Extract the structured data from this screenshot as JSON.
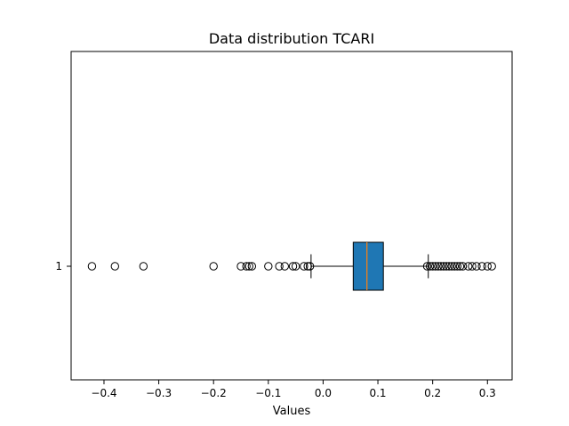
{
  "chart_data": {
    "type": "boxplot",
    "orientation": "horizontal",
    "title": "Data distribution TCARI",
    "xlabel": "Values",
    "ylabel": "",
    "xlim": [
      -0.46,
      0.345
    ],
    "x_ticks": [
      {
        "value": -0.4,
        "label": "−0.4"
      },
      {
        "value": -0.3,
        "label": "−0.3"
      },
      {
        "value": -0.2,
        "label": "−0.2"
      },
      {
        "value": -0.1,
        "label": "−0.1"
      },
      {
        "value": 0.0,
        "label": "0.0"
      },
      {
        "value": 0.1,
        "label": "0.1"
      },
      {
        "value": 0.2,
        "label": "0.2"
      },
      {
        "value": 0.3,
        "label": "0.3"
      }
    ],
    "y_ticks": [
      {
        "value": 1,
        "label": "1"
      }
    ],
    "grid": false,
    "legend": "none",
    "colors": {
      "box_fill": "#1f77b4",
      "median": "#ff7f0e",
      "line": "#000000"
    },
    "boxes": [
      {
        "category": "1",
        "whisker_low": -0.022,
        "q1": 0.055,
        "median": 0.08,
        "q3": 0.11,
        "whisker_high": 0.192,
        "outliers_low": [
          -0.422,
          -0.38,
          -0.328,
          -0.2,
          -0.15,
          -0.14,
          -0.135,
          -0.13,
          -0.1,
          -0.08,
          -0.07,
          -0.055,
          -0.05,
          -0.035,
          -0.028,
          -0.024
        ],
        "outliers_high": [
          0.19,
          0.195,
          0.2,
          0.205,
          0.21,
          0.215,
          0.22,
          0.225,
          0.23,
          0.235,
          0.24,
          0.245,
          0.25,
          0.255,
          0.265,
          0.272,
          0.28,
          0.29,
          0.3,
          0.308
        ]
      }
    ]
  }
}
